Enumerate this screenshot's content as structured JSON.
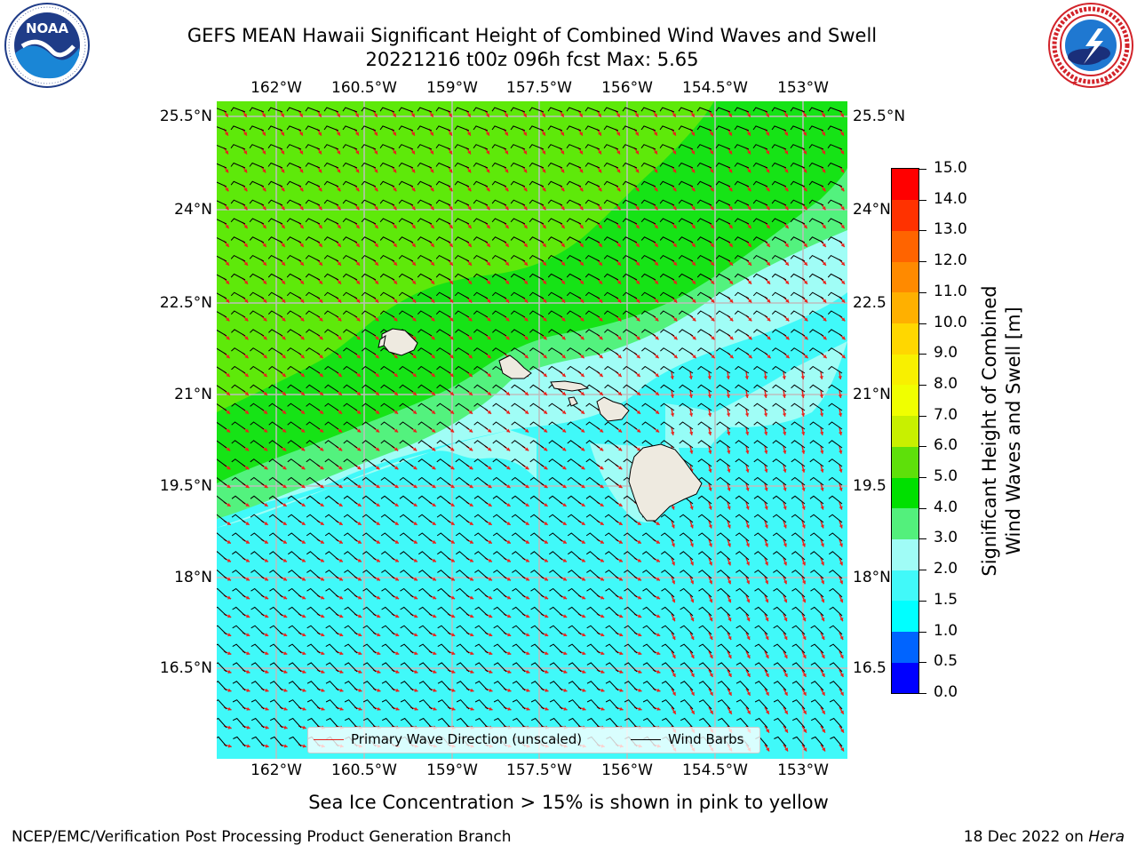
{
  "title": {
    "line1": "GEFS MEAN Hawaii Significant Height of Combined Wind Waves and Swell",
    "line2": "20221216 t00z 096h fcst   Max: 5.65"
  },
  "logos": {
    "noaa": {
      "text": "NOAA",
      "ring_text": "NATIONAL OCEANIC AND ATMOSPHERIC ADMINISTRATION · U.S. DEPARTMENT OF COMMERCE"
    },
    "nws": {
      "ring_text": "NATIONAL WEATHER SERVICE"
    }
  },
  "map": {
    "lon_labels": [
      "162°W",
      "160.5°W",
      "159°W",
      "157.5°W",
      "156°W",
      "154.5°W",
      "153°W"
    ],
    "lat_labels_left": [
      "25.5°N",
      "24°N",
      "22.5°N",
      "21°N",
      "19.5°N",
      "18°N",
      "16.5°N"
    ],
    "lat_labels_right": [
      "25.5°N",
      "24°N",
      "22.5",
      "21°N",
      "19.5",
      "18°N",
      "16.5"
    ],
    "legend": {
      "wave_direction": "Primary Wave Direction (unscaled)",
      "wind_barbs": "Wind Barbs",
      "wave_color": "#e8231c",
      "barb_color": "#000000"
    },
    "fill_colors": {
      "band_5_6": "#5ee90a",
      "band_4_5": "#16e316",
      "band_3_4": "#53f27e",
      "band_2_3": "#a0fdf6",
      "band_1_5_2": "#40f9f9",
      "land": "#eeeae0"
    }
  },
  "colorbar": {
    "label_line1": "Significant Height of Combined",
    "label_line2": "Wind Waves and Swell [m]",
    "ticks": [
      "15.0",
      "14.0",
      "13.0",
      "12.0",
      "11.0",
      "10.0",
      "9.0",
      "8.0",
      "7.0",
      "6.0",
      "5.0",
      "4.0",
      "3.0",
      "2.0",
      "1.5",
      "1.0",
      "0.5",
      "0.0"
    ],
    "colors_bottom_to_top": [
      "#0000ff",
      "#0064ff",
      "#00ffff",
      "#41f9f9",
      "#a0fcf6",
      "#53f07c",
      "#00e000",
      "#5ee00a",
      "#c8f000",
      "#f0ff00",
      "#f8f000",
      "#ffd700",
      "#ffb000",
      "#ff8a00",
      "#ff6400",
      "#ff3200",
      "#ff0000"
    ]
  },
  "ice_note": "Sea Ice Concentration > 15% is shown in pink to yellow",
  "footer": {
    "left": "NCEP/EMC/Verification Post Processing Product Generation Branch",
    "right_date": "18 Dec 2022 on ",
    "right_host": "Hera"
  }
}
